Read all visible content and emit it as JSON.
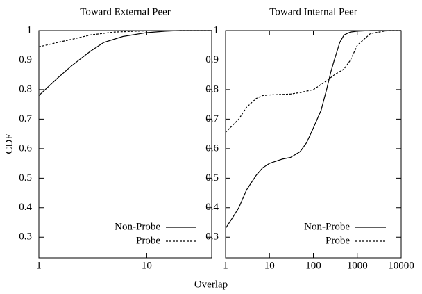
{
  "xlabel": "Overlap",
  "ylabel": "CDF",
  "log_x": true,
  "legend": "lower right",
  "chart_data": [
    {
      "type": "line",
      "title": "Toward External Peer",
      "xlim": [
        1,
        40
      ],
      "xticks": [
        1,
        10
      ],
      "ylim": [
        0.23,
        1
      ],
      "yticks": [
        0.3,
        0.4,
        0.5,
        0.6,
        0.7,
        0.8,
        0.9,
        1
      ],
      "series": [
        {
          "name": "Non-Probe",
          "color": "#000000",
          "dash": "solid",
          "x": [
            1,
            1.5,
            2,
            3,
            4,
            6,
            10,
            15,
            20,
            40
          ],
          "values": [
            0.78,
            0.84,
            0.88,
            0.93,
            0.96,
            0.98,
            0.993,
            0.998,
            1,
            1
          ]
        },
        {
          "name": "Probe",
          "color": "#000000",
          "dash": "dashed",
          "x": [
            1,
            1.5,
            2,
            3,
            5,
            10,
            20,
            40
          ],
          "values": [
            0.945,
            0.96,
            0.97,
            0.985,
            0.995,
            0.999,
            1,
            1
          ]
        }
      ]
    },
    {
      "type": "line",
      "title": "Toward Internal Peer",
      "xlim": [
        1,
        10000
      ],
      "xticks": [
        1,
        10,
        100,
        1000,
        10000
      ],
      "ylim": [
        0.23,
        1
      ],
      "yticks": [
        0.3,
        0.4,
        0.5,
        0.6,
        0.7,
        0.8,
        0.9,
        1
      ],
      "series": [
        {
          "name": "Non-Probe",
          "color": "#000000",
          "dash": "solid",
          "x": [
            1,
            1.5,
            2,
            3,
            5,
            7,
            10,
            20,
            30,
            50,
            70,
            100,
            150,
            200,
            250,
            300,
            400,
            500,
            700,
            1000,
            2000,
            10000
          ],
          "values": [
            0.33,
            0.37,
            0.4,
            0.46,
            0.51,
            0.535,
            0.55,
            0.565,
            0.57,
            0.59,
            0.62,
            0.67,
            0.73,
            0.8,
            0.86,
            0.9,
            0.96,
            0.985,
            0.995,
            0.998,
            1,
            1
          ]
        },
        {
          "name": "Probe",
          "color": "#000000",
          "dash": "dashed",
          "x": [
            1,
            2,
            3,
            5,
            7,
            10,
            30,
            50,
            100,
            200,
            300,
            500,
            700,
            1000,
            2000,
            5000,
            10000
          ],
          "values": [
            0.655,
            0.7,
            0.74,
            0.77,
            0.78,
            0.782,
            0.785,
            0.79,
            0.8,
            0.83,
            0.85,
            0.87,
            0.9,
            0.95,
            0.99,
            1,
            1
          ]
        }
      ]
    }
  ]
}
